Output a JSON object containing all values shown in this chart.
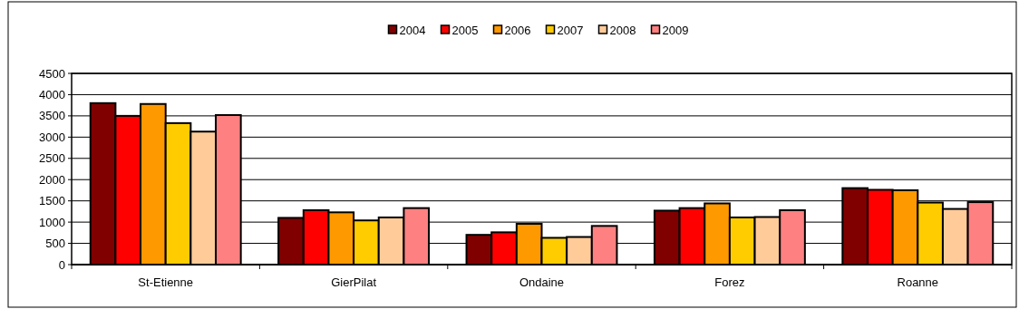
{
  "chart_data": {
    "type": "bar",
    "categories": [
      "St-Etienne",
      "GierPilat",
      "Ondaine",
      "Forez",
      "Roanne"
    ],
    "series": [
      {
        "name": "2004",
        "color": "#800000",
        "values": [
          3800,
          1100,
          700,
          1270,
          1800
        ]
      },
      {
        "name": "2005",
        "color": "#ff0000",
        "values": [
          3500,
          1280,
          760,
          1330,
          1760
        ]
      },
      {
        "name": "2006",
        "color": "#ff9900",
        "values": [
          3780,
          1230,
          960,
          1440,
          1750
        ]
      },
      {
        "name": "2007",
        "color": "#ffcc00",
        "values": [
          3330,
          1040,
          630,
          1110,
          1460
        ]
      },
      {
        "name": "2008",
        "color": "#ffcc99",
        "values": [
          3130,
          1110,
          650,
          1120,
          1310
        ]
      },
      {
        "name": "2009",
        "color": "#ff8080",
        "values": [
          3520,
          1330,
          910,
          1280,
          1470
        ]
      }
    ],
    "ylim": [
      0,
      4500
    ],
    "yticks": [
      0,
      500,
      1000,
      1500,
      2000,
      2500,
      3000,
      3500,
      4000,
      4500
    ],
    "grid": "y",
    "legend": "top"
  }
}
